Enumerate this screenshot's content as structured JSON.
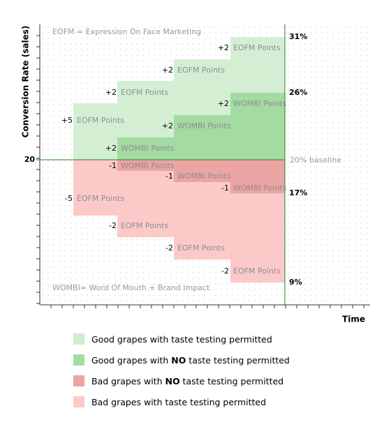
{
  "notes": {
    "top": "EOFM = Expression  On Face Marketing",
    "bottom": "WOMBI= Word Of Mouth + Brand Impact"
  },
  "axes": {
    "y_label": "Conversion Rate (sales)",
    "x_label": "Time",
    "y_value": "20"
  },
  "right_labels": [
    "31%",
    "26%",
    "20% baseline",
    "17%",
    "9%"
  ],
  "annotations": [
    {
      "delta": "+5",
      "text": "EOFM Points"
    },
    {
      "delta": "-5",
      "text": "EOFM Points"
    },
    {
      "delta": "+2",
      "text": "EOFM Points"
    },
    {
      "delta": "+2",
      "text": "WOMBI Points"
    },
    {
      "delta": "-1",
      "text": "WOMBI Points"
    },
    {
      "delta": "-2",
      "text": "EOFM Points"
    },
    {
      "delta": "+2",
      "text": "EOFM Points"
    },
    {
      "delta": "+2",
      "text": "WOMBI Points"
    },
    {
      "delta": "-1",
      "text": "WOMBI Points"
    },
    {
      "delta": "-2",
      "text": "EOFM Points"
    },
    {
      "delta": "+2",
      "text": "EOFM Points"
    },
    {
      "delta": "+2",
      "text": "WOMBI Points"
    },
    {
      "delta": "-1",
      "text": "WOMBI Points"
    },
    {
      "delta": "-2",
      "text": "EOFM Points"
    }
  ],
  "legend": [
    [
      "Good grapes with taste testing permitted"
    ],
    [
      "Good grapes with ",
      "NO",
      " taste testing permitted"
    ],
    [
      "Bad grapes with ",
      "NO",
      " taste testing permitted"
    ],
    [
      "Bad grapes with taste testing permitted"
    ]
  ]
}
